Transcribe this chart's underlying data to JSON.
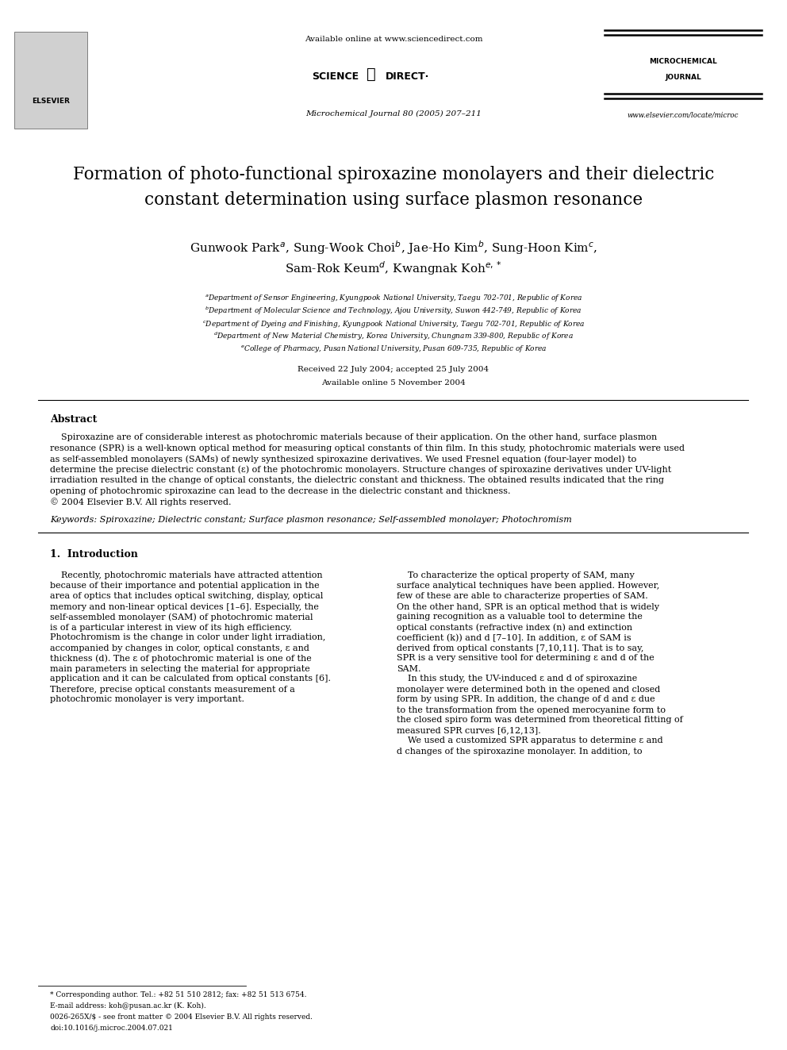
{
  "page_width": 9.92,
  "page_height": 13.23,
  "bg_color": "#ffffff",
  "header": {
    "available_online": "Available online at www.sciencedirect.com",
    "journal_info": "Microchemical Journal 80 (2005) 207–211",
    "journal_name_line1": "MICROCHEMICAL",
    "journal_name_line2": "JOURNAL",
    "website": "www.elsevier.com/locate/microc"
  },
  "title_line1": "Formation of photo-functional spiroxazine monolayers and their dielectric",
  "title_line2": "constant determination using surface plasmon resonance",
  "author_line1": "Gunwook Park$^a$, Sung-Wook Choi$^b$, Jae-Ho Kim$^b$, Sung-Hoon Kim$^c$,",
  "author_line2": "Sam-Rok Keum$^d$, Kwangnak Koh$^{e,*}$",
  "affiliations": [
    "$^a$Department of Sensor Engineering, Kyungpook National University, Taegu 702-701, Republic of Korea",
    "$^b$Department of Molecular Science and Technology, Ajou University, Suwon 442-749, Republic of Korea",
    "$^c$Department of Dyeing and Finishing, Kyungpook National University, Taegu 702-701, Republic of Korea",
    "$^d$Department of New Material Chemistry, Korea University, Chungnam 339-800, Republic of Korea",
    "$^e$College of Pharmacy, Pusan National University, Pusan 609-735, Republic of Korea"
  ],
  "received": "Received 22 July 2004; accepted 25 July 2004",
  "available": "Available online 5 November 2004",
  "abstract_title": "Abstract",
  "abstract_lines": [
    "    Spiroxazine are of considerable interest as photochromic materials because of their application. On the other hand, surface plasmon",
    "resonance (SPR) is a well-known optical method for measuring optical constants of thin film. In this study, photochromic materials were used",
    "as self-assembled monolayers (SAMs) of newly synthesized spiroxazine derivatives. We used Fresnel equation (four-layer model) to",
    "determine the precise dielectric constant (ε) of the photochromic monolayers. Structure changes of spiroxazine derivatives under UV-light",
    "irradiation resulted in the change of optical constants, the dielectric constant and thickness. The obtained results indicated that the ring",
    "opening of photochromic spiroxazine can lead to the decrease in the dielectric constant and thickness.",
    "© 2004 Elsevier B.V. All rights reserved."
  ],
  "keywords": "Keywords: Spiroxazine; Dielectric constant; Surface plasmon resonance; Self-assembled monolayer; Photochromism",
  "section1_title": "1.  Introduction",
  "col1_lines": [
    "    Recently, photochromic materials have attracted attention",
    "because of their importance and potential application in the",
    "area of optics that includes optical switching, display, optical",
    "memory and non-linear optical devices [1–6]. Especially, the",
    "self-assembled monolayer (SAM) of photochromic material",
    "is of a particular interest in view of its high efficiency.",
    "Photochromism is the change in color under light irradiation,",
    "accompanied by changes in color, optical constants, ε and",
    "thickness (d). The ε of photochromic material is one of the",
    "main parameters in selecting the material for appropriate",
    "application and it can be calculated from optical constants [6].",
    "Therefore, precise optical constants measurement of a",
    "photochromic monolayer is very important."
  ],
  "col2_lines": [
    "    To characterize the optical property of SAM, many",
    "surface analytical techniques have been applied. However,",
    "few of these are able to characterize properties of SAM.",
    "On the other hand, SPR is an optical method that is widely",
    "gaining recognition as a valuable tool to determine the",
    "optical constants (refractive index (n) and extinction",
    "coefficient (k)) and d [7–10]. In addition, ε of SAM is",
    "derived from optical constants [7,10,11]. That is to say,",
    "SPR is a very sensitive tool for determining ε and d of the",
    "SAM.",
    "    In this study, the UV-induced ε and d of spiroxazine",
    "monolayer were determined both in the opened and closed",
    "form by using SPR. In addition, the change of d and ε due",
    "to the transformation from the opened merocyanine form to",
    "the closed spiro form was determined from theoretical fitting of",
    "measured SPR curves [6,12,13].",
    "    We used a customized SPR apparatus to determine ε and",
    "d changes of the spiroxazine monolayer. In addition, to"
  ],
  "footnotes": [
    "* Corresponding author. Tel.: +82 51 510 2812; fax: +82 51 513 6754.",
    "E-mail address: koh@pusan.ac.kr (K. Koh).",
    "0026-265X/$ - see front matter © 2004 Elsevier B.V. All rights reserved.",
    "doi:10.1016/j.microc.2004.07.021"
  ]
}
